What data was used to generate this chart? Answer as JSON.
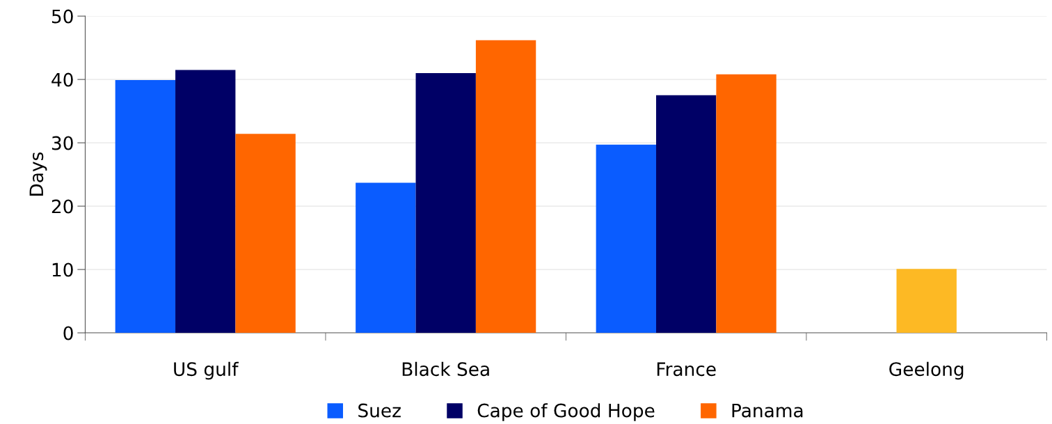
{
  "chart_data": {
    "type": "bar",
    "ylabel": "Days",
    "categories": [
      "US gulf",
      "Black Sea",
      "France",
      "Geelong"
    ],
    "series": [
      {
        "name": "Suez",
        "color": "#0a5cff",
        "values": [
          39.9,
          23.7,
          29.7,
          null
        ]
      },
      {
        "name": "Cape of Good Hope",
        "color": "#000066",
        "colors": [
          "#000066",
          "#000066",
          "#000066",
          "#fdb924"
        ],
        "values": [
          41.5,
          41.0,
          37.5,
          10.1
        ]
      },
      {
        "name": "Panama",
        "color": "#ff6600",
        "values": [
          31.4,
          46.2,
          40.8,
          null
        ]
      }
    ],
    "ylim": [
      0,
      50
    ],
    "yticks": [
      0,
      10,
      20,
      30,
      40,
      50
    ],
    "grid": "y",
    "legend": "bottom"
  }
}
